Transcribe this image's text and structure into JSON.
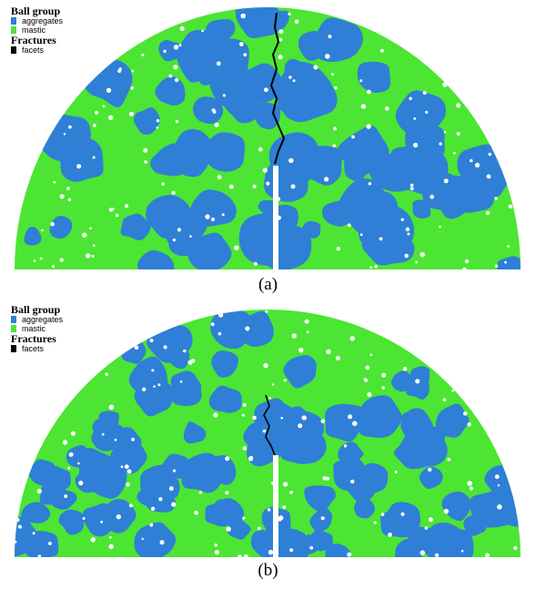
{
  "colors": {
    "aggregates": "#2f7fd6",
    "mastic": "#4ce533",
    "facets": "#000000",
    "void": "#ffffff"
  },
  "panels": [
    {
      "id": "a",
      "caption": "(a)",
      "legend": {
        "ball_group_title": "Ball group",
        "ball_items": [
          "aggregates",
          "mastic"
        ],
        "fractures_title": "Fractures",
        "fracture_items": [
          "facets"
        ]
      }
    },
    {
      "id": "b",
      "caption": "(b)",
      "legend": {
        "ball_group_title": "Ball group",
        "ball_items": [
          "aggregates",
          "mastic"
        ],
        "fractures_title": "Fractures",
        "fracture_items": [
          "facets"
        ]
      }
    }
  ]
}
